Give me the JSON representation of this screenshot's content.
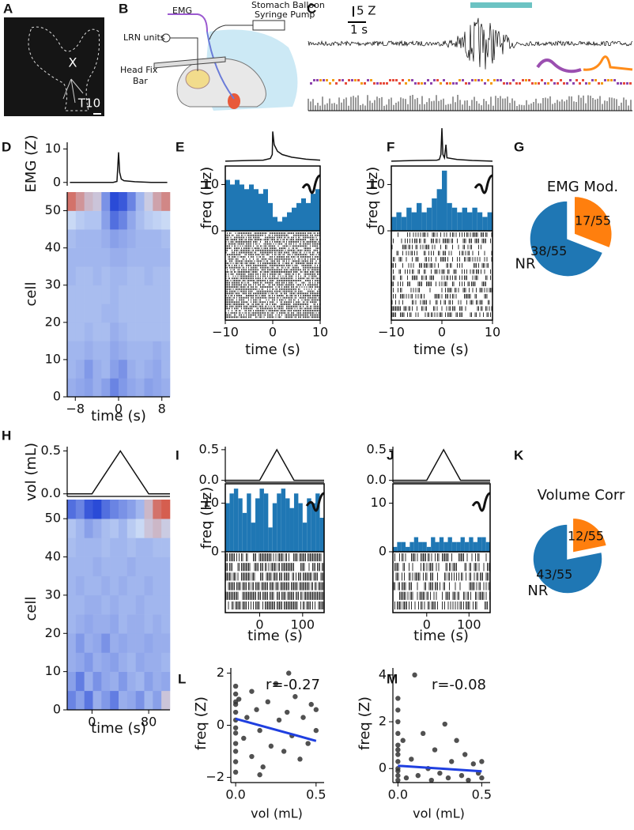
{
  "panel_labels": [
    "A",
    "B",
    "C",
    "D",
    "E",
    "F",
    "G",
    "H",
    "I",
    "J",
    "K",
    "L",
    "M"
  ],
  "panel_a": {
    "marker": "X",
    "level": "T10"
  },
  "panel_b": {
    "labels": [
      "EMG",
      "Stomach Balloon",
      "Syringe Pump",
      "LRN units",
      "Head Fix",
      "Bar"
    ]
  },
  "panel_c": {
    "scale_y": "5 Z",
    "scale_x": "1 s"
  },
  "chart_data": [
    {
      "type": "line",
      "ylabel": "EMG (Z)",
      "x": [
        -9,
        -6,
        -3,
        -1,
        -0.3,
        0,
        0.2,
        0.5,
        1,
        3,
        6,
        9
      ],
      "values": [
        0,
        0,
        0,
        0,
        0.3,
        9,
        3,
        1,
        0.5,
        0.2,
        0,
        0
      ],
      "xlim": [
        -9.5,
        9.5
      ],
      "ylim": [
        -1,
        12
      ],
      "yticks": [
        0,
        10
      ],
      "color": "#111111"
    },
    {
      "type": "heatmap",
      "ylabel": "cell",
      "xlabel": "time (s)",
      "xlim": [
        -9.5,
        9.5
      ],
      "ylim": [
        0,
        55
      ],
      "xticks": [
        {
          "value": -8,
          "label": "−8"
        },
        0,
        8
      ],
      "yticks": [
        0,
        10,
        20,
        30,
        40,
        50
      ],
      "zlim": [
        -2,
        2
      ],
      "colorscale": [
        "#2a4bd7",
        "#c9d9f5",
        "#d6503c"
      ],
      "values": [
        [
          -0.6,
          -0.7,
          -0.8,
          -0.6,
          -0.8,
          -1.2,
          -0.9,
          -0.7,
          -0.6,
          -0.8,
          -0.7,
          -0.6
        ],
        [
          -0.5,
          -0.6,
          -0.9,
          -0.6,
          -0.5,
          -0.8,
          -1.0,
          -0.6,
          -0.5,
          -0.6,
          -0.7,
          -0.5
        ],
        [
          -0.5,
          -0.5,
          -0.6,
          -0.5,
          -0.5,
          -0.7,
          -0.6,
          -0.5,
          -0.5,
          -0.5,
          -0.6,
          -0.5
        ],
        [
          -0.4,
          -0.4,
          -0.5,
          -0.4,
          -0.4,
          -0.6,
          -0.5,
          -0.4,
          -0.4,
          -0.4,
          -0.4,
          -0.4
        ],
        [
          -0.4,
          -0.4,
          -0.4,
          -0.4,
          -0.5,
          -0.5,
          -0.4,
          -0.4,
          -0.4,
          -0.4,
          -0.4,
          -0.4
        ],
        [
          -0.4,
          -0.4,
          -0.4,
          -0.4,
          -0.4,
          -0.5,
          -0.4,
          -0.4,
          -0.4,
          -0.4,
          -0.4,
          -0.4
        ],
        [
          -0.5,
          -0.4,
          -0.4,
          -0.5,
          -0.4,
          -0.5,
          -0.5,
          -0.4,
          -0.4,
          -0.5,
          -0.4,
          -0.4
        ],
        [
          -0.5,
          -0.5,
          -0.5,
          -0.5,
          -0.5,
          -0.6,
          -0.6,
          -0.5,
          -0.5,
          -0.5,
          -0.5,
          -0.5
        ],
        [
          -0.4,
          -0.5,
          -0.5,
          -0.5,
          -0.6,
          -0.8,
          -0.7,
          -0.6,
          -0.5,
          -0.5,
          -0.5,
          -0.4
        ],
        [
          0,
          -0.2,
          -0.3,
          -0.3,
          -0.8,
          -1.5,
          -1.2,
          -0.7,
          -0.4,
          -0.2,
          -0.1,
          0
        ],
        [
          1.5,
          1.0,
          0.5,
          0.3,
          -1.0,
          -2,
          -1.8,
          -1.2,
          -0.5,
          0.2,
          0.8,
          1.2
        ]
      ]
    },
    {
      "type": "line",
      "x": [
        -10,
        -5,
        -2,
        -0.5,
        -0.1,
        0,
        0.3,
        1,
        2,
        4,
        7,
        10
      ],
      "values": [
        0,
        0.2,
        0.3,
        0.8,
        2,
        9,
        5,
        3,
        2,
        1.2,
        0.6,
        0.3
      ],
      "xlim": [
        -10,
        10
      ],
      "ylim": [
        -1,
        11
      ],
      "color": "#111111"
    },
    {
      "type": "histogram",
      "ylabel": "freq (Hz)",
      "xlabel": "time (s)",
      "bins": [
        -10,
        -9,
        -8,
        -7,
        -6,
        -5,
        -4,
        -3,
        -2,
        -1,
        0,
        1,
        2,
        3,
        4,
        5,
        6,
        7,
        8,
        9,
        10
      ],
      "values": [
        11,
        10,
        11,
        10,
        9,
        10,
        9,
        8,
        9,
        6,
        3,
        2,
        3,
        4,
        5,
        6,
        7,
        6,
        8,
        9
      ],
      "xlim": [
        -10,
        10
      ],
      "ylim": [
        0,
        14
      ],
      "xticks": [
        {
          "value": -10,
          "label": "−10"
        },
        0,
        10
      ],
      "yticks": [
        0,
        10
      ],
      "color": "#1f77b4"
    },
    {
      "type": "line",
      "x": [
        -10,
        -5,
        -1,
        -0.5,
        -0.2,
        0,
        0.2,
        0.5,
        0.8,
        1,
        3,
        6,
        10
      ],
      "values": [
        0,
        0.2,
        0.3,
        0.5,
        2,
        10,
        2,
        1,
        5,
        1,
        0.5,
        0.2,
        0
      ],
      "xlim": [
        -10,
        10
      ],
      "ylim": [
        -1,
        11
      ],
      "color": "#111111"
    },
    {
      "type": "histogram",
      "ylabel": "freq (Hz)",
      "xlabel": "time (s)",
      "bins": [
        -10,
        -9,
        -8,
        -7,
        -6,
        -5,
        -4,
        -3,
        -2,
        -1,
        0,
        1,
        2,
        3,
        4,
        5,
        6,
        7,
        8,
        9,
        10
      ],
      "values": [
        3,
        4,
        3,
        5,
        4,
        6,
        4,
        5,
        7,
        9,
        13,
        6,
        5,
        4,
        5,
        4,
        5,
        4,
        3,
        4
      ],
      "xlim": [
        -10,
        10
      ],
      "ylim": [
        0,
        14
      ],
      "xticks": [
        {
          "value": -10,
          "label": "−10"
        },
        0,
        10
      ],
      "yticks": [
        0,
        10
      ],
      "color": "#1f77b4"
    },
    {
      "type": "pie",
      "title": "EMG Mod.",
      "categories": [
        "NR",
        null
      ],
      "values": [
        38,
        17
      ],
      "value_labels": [
        "38/55",
        "17/55"
      ],
      "colors": [
        "#1f77b4",
        "#ff7f0e"
      ]
    },
    {
      "type": "line",
      "ylabel": "vol (mL)",
      "x": [
        -35,
        0,
        40,
        80,
        110
      ],
      "values": [
        0,
        0,
        0.5,
        0,
        0
      ],
      "xlim": [
        -35,
        110
      ],
      "ylim": [
        -0.03,
        0.55
      ],
      "yticks": [
        {
          "value": 0,
          "label": "0.0"
        },
        {
          "value": 0.5,
          "label": "0.5"
        }
      ],
      "color": "#111111"
    },
    {
      "type": "heatmap",
      "ylabel": "cell",
      "xlabel": "time (s)",
      "xlim": [
        -35,
        110
      ],
      "ylim": [
        0,
        55
      ],
      "xticks": [
        0,
        80
      ],
      "yticks": [
        0,
        10,
        20,
        30,
        40,
        50
      ],
      "zlim": [
        -2,
        2
      ],
      "colorscale": [
        "#2a4bd7",
        "#c9d9f5",
        "#d6503c"
      ],
      "values": [
        [
          -1.2,
          -0.8,
          -1.4,
          -0.6,
          -0.9,
          -1.3,
          -0.6,
          -0.7,
          -1.0,
          -0.5,
          -0.8,
          0.3
        ],
        [
          -0.8,
          -1.3,
          -0.6,
          -1.0,
          -0.7,
          -0.6,
          -0.9,
          -0.6,
          -0.5,
          -0.8,
          -0.6,
          -0.7
        ],
        [
          -0.6,
          -0.7,
          -0.9,
          -0.6,
          -0.7,
          -0.8,
          -0.6,
          -0.5,
          -0.7,
          -0.6,
          -0.6,
          -0.5
        ],
        [
          -0.6,
          -0.9,
          -0.6,
          -0.7,
          -1.0,
          -0.6,
          -0.7,
          -0.6,
          -0.6,
          -0.7,
          -0.6,
          -0.6
        ],
        [
          -0.5,
          -0.6,
          -0.7,
          -0.6,
          -0.6,
          -0.7,
          -0.5,
          -0.6,
          -0.6,
          -0.5,
          -0.6,
          -0.5
        ],
        [
          -0.5,
          -0.5,
          -0.6,
          -0.6,
          -0.5,
          -0.6,
          -0.5,
          -0.5,
          -0.6,
          -0.5,
          -0.5,
          -0.5
        ],
        [
          -0.5,
          -0.6,
          -0.5,
          -0.5,
          -0.6,
          -0.5,
          -0.6,
          -0.5,
          -0.5,
          -0.6,
          -0.5,
          -0.5
        ],
        [
          -0.5,
          -0.5,
          -0.5,
          -0.6,
          -0.5,
          -0.5,
          -0.5,
          -0.6,
          -0.5,
          -0.5,
          -0.5,
          -0.5
        ],
        [
          -0.4,
          -0.5,
          -0.5,
          -0.5,
          -0.4,
          -0.5,
          -0.5,
          -0.4,
          -0.5,
          -0.5,
          -0.4,
          -0.4
        ],
        [
          -0.3,
          -0.5,
          -0.8,
          -0.6,
          -0.4,
          -0.3,
          -0.5,
          -0.2,
          0,
          0.3,
          0.5,
          0.2
        ],
        [
          -1.5,
          -1.2,
          -1.8,
          -2,
          -1.5,
          -1.2,
          -1.0,
          -0.8,
          -0.5,
          0.5,
          1.5,
          1.8
        ]
      ]
    },
    {
      "type": "line",
      "x": [
        -80,
        0,
        40,
        80,
        150
      ],
      "values": [
        0,
        0,
        0.5,
        0,
        0
      ],
      "xlim": [
        -80,
        150
      ],
      "ylim": [
        -0.03,
        0.55
      ],
      "yticks": [
        {
          "value": 0,
          "label": "0.0"
        },
        {
          "value": 0.5,
          "label": "0.5"
        }
      ],
      "color": "#111111"
    },
    {
      "type": "histogram",
      "ylabel": "freq (Hz)",
      "xlabel": "time (s)",
      "bins": [
        -80,
        -70,
        -60,
        -50,
        -40,
        -30,
        -20,
        -10,
        0,
        10,
        20,
        30,
        40,
        50,
        60,
        70,
        80,
        90,
        100,
        110,
        120,
        130,
        140,
        150
      ],
      "values": [
        10,
        12,
        13,
        11,
        8,
        12,
        6,
        11,
        13,
        12,
        5,
        10,
        12,
        13,
        11,
        9,
        12,
        10,
        6,
        11,
        10,
        12,
        7
      ],
      "xlim": [
        -80,
        150
      ],
      "ylim": [
        0,
        14
      ],
      "xticks": [
        0,
        100
      ],
      "yticks": [
        0,
        10
      ],
      "color": "#1f77b4"
    },
    {
      "type": "line",
      "x": [
        -80,
        0,
        40,
        80,
        150
      ],
      "values": [
        0,
        0,
        0.5,
        0,
        0
      ],
      "xlim": [
        -80,
        150
      ],
      "ylim": [
        -0.03,
        0.55
      ],
      "yticks": [
        {
          "value": 0,
          "label": "0.0"
        },
        {
          "value": 0.5,
          "label": "0.5"
        }
      ],
      "color": "#111111"
    },
    {
      "type": "histogram",
      "xlabel": "time (s)",
      "bins": [
        -80,
        -70,
        -60,
        -50,
        -40,
        -30,
        -20,
        -10,
        0,
        10,
        20,
        30,
        40,
        50,
        60,
        70,
        80,
        90,
        100,
        110,
        120,
        130,
        140,
        150
      ],
      "values": [
        1,
        2,
        2,
        1,
        2,
        3,
        2,
        2,
        1,
        3,
        2,
        3,
        2,
        3,
        2,
        2,
        3,
        2,
        3,
        2,
        3,
        3,
        2
      ],
      "xlim": [
        -80,
        150
      ],
      "ylim": [
        0,
        14
      ],
      "xticks": [
        0,
        100
      ],
      "yticks": [
        0,
        10
      ],
      "color": "#1f77b4"
    },
    {
      "type": "pie",
      "title": "Volume Corr",
      "categories": [
        "NR",
        null
      ],
      "values": [
        43,
        12
      ],
      "value_labels": [
        "43/55",
        "12/55"
      ],
      "colors": [
        "#1f77b4",
        "#ff7f0e"
      ]
    },
    {
      "type": "scatter",
      "ylabel": "freq (Z)",
      "xlabel": "vol (mL)",
      "annotation": "r=-0.27",
      "x": [
        0,
        0,
        0,
        0,
        0,
        0,
        0,
        0,
        0,
        0,
        0,
        0,
        0.02,
        0.05,
        0.07,
        0.1,
        0.1,
        0.13,
        0.15,
        0.17,
        0.2,
        0.22,
        0.25,
        0.27,
        0.3,
        0.32,
        0.35,
        0.37,
        0.4,
        0.42,
        0.45,
        0.47,
        0.5,
        0.5,
        0.33,
        0.15
      ],
      "values": [
        1.5,
        1.2,
        0.8,
        0.5,
        0.2,
        -0.3,
        -0.7,
        -1.0,
        -1.4,
        -1.8,
        0.9,
        -0.1,
        1.0,
        -0.5,
        0.3,
        1.3,
        -1.2,
        0.6,
        -0.2,
        -1.6,
        0.9,
        -0.8,
        1.6,
        0.2,
        -1.0,
        0.5,
        -0.4,
        1.1,
        -1.3,
        0.3,
        -0.7,
        0.8,
        -0.2,
        0.6,
        2.0,
        -1.9
      ],
      "fit": {
        "x": [
          0,
          0.5
        ],
        "values": [
          0.25,
          -0.6
        ],
        "color": "#1f3fe0"
      },
      "xlim": [
        -0.03,
        0.55
      ],
      "ylim": [
        -2.2,
        2.2
      ],
      "xticks": [
        {
          "value": 0,
          "label": "0.0"
        },
        {
          "value": 0.5,
          "label": "0.5"
        }
      ],
      "yticks": [
        {
          "value": -2,
          "label": "−2"
        },
        0,
        2
      ],
      "color": "#333333"
    },
    {
      "type": "scatter",
      "ylabel": "freq (Z)",
      "xlabel": "vol (mL)",
      "annotation": "r=-0.08",
      "x": [
        0,
        0,
        0,
        0,
        0,
        0,
        0,
        0,
        0,
        0,
        0,
        0,
        0.03,
        0.05,
        0.08,
        0.1,
        0.12,
        0.15,
        0.18,
        0.2,
        0.22,
        0.25,
        0.28,
        0.3,
        0.32,
        0.35,
        0.38,
        0.4,
        0.42,
        0.45,
        0.48,
        0.5,
        0.5
      ],
      "values": [
        3.0,
        2.5,
        2.0,
        1.5,
        1.0,
        0.6,
        0.3,
        0,
        -0.3,
        -0.5,
        0.8,
        -0.1,
        1.2,
        -0.4,
        0.4,
        4.0,
        -0.3,
        1.5,
        0,
        -0.5,
        0.8,
        -0.2,
        1.9,
        -0.4,
        0.3,
        1.2,
        -0.3,
        0.6,
        -0.5,
        0.2,
        -0.2,
        0.3,
        -0.4
      ],
      "fit": {
        "x": [
          0,
          0.5
        ],
        "values": [
          0.12,
          -0.12
        ],
        "color": "#1f3fe0"
      },
      "xlim": [
        -0.03,
        0.55
      ],
      "ylim": [
        -0.6,
        4.3
      ],
      "xticks": [
        {
          "value": 0,
          "label": "0.0"
        },
        {
          "value": 0.5,
          "label": "0.5"
        }
      ],
      "yticks": [
        0,
        2,
        4
      ],
      "color": "#333333"
    }
  ]
}
